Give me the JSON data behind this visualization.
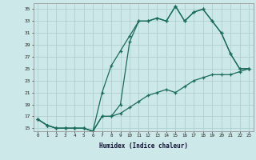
{
  "xlabel": "Humidex (Indice chaleur)",
  "bg_color": "#cce8e8",
  "grid_color": "#aacccc",
  "line_color": "#1a6b5a",
  "xlim": [
    -0.5,
    23.5
  ],
  "ylim": [
    14.5,
    36.0
  ],
  "xticks": [
    0,
    1,
    2,
    3,
    4,
    5,
    6,
    7,
    8,
    9,
    10,
    11,
    12,
    13,
    14,
    15,
    16,
    17,
    18,
    19,
    20,
    21,
    22,
    23
  ],
  "yticks": [
    15,
    17,
    19,
    21,
    23,
    25,
    27,
    29,
    31,
    33,
    35
  ],
  "line1_x": [
    0,
    1,
    2,
    3,
    4,
    5,
    6,
    7,
    8,
    9,
    10,
    11,
    12,
    13,
    14,
    15,
    16,
    17,
    18,
    19,
    20,
    21,
    22,
    23
  ],
  "line1_y": [
    16.5,
    15.5,
    15,
    15,
    15,
    15,
    14.5,
    17,
    17,
    19,
    29.5,
    33,
    33,
    33.5,
    33,
    35.5,
    33,
    34.5,
    35,
    33,
    31,
    27.5,
    25,
    25
  ],
  "line2_x": [
    0,
    1,
    2,
    3,
    4,
    5,
    6,
    7,
    8,
    9,
    10,
    11,
    12,
    13,
    14,
    15,
    16,
    17,
    18,
    19,
    20,
    21,
    22,
    23
  ],
  "line2_y": [
    16.5,
    15.5,
    15,
    15,
    15,
    15,
    14.5,
    21,
    25.5,
    28,
    30.5,
    33,
    33,
    33.5,
    33,
    35.5,
    33,
    34.5,
    35,
    33,
    31,
    27.5,
    25,
    25
  ],
  "line3_x": [
    0,
    1,
    2,
    3,
    4,
    5,
    6,
    7,
    8,
    9,
    10,
    11,
    12,
    13,
    14,
    15,
    16,
    17,
    18,
    19,
    20,
    21,
    22,
    23
  ],
  "line3_y": [
    16.5,
    15.5,
    15,
    15,
    15,
    15,
    14.5,
    17,
    17,
    17.5,
    18.5,
    19.5,
    20.5,
    21,
    21.5,
    21,
    22,
    23,
    23.5,
    24,
    24,
    24,
    24.5,
    25
  ]
}
